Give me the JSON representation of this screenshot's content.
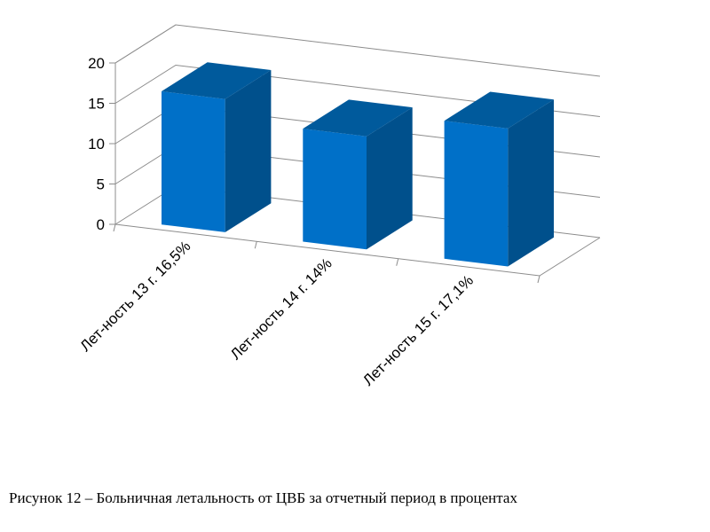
{
  "chart_data": {
    "type": "bar",
    "categories": [
      "Лет-ность 13 г. 16,5%",
      "Лет-ность 14 г. 14%",
      "Лет-ность 15 г. 17,1%"
    ],
    "values": [
      16.5,
      14,
      17.1
    ],
    "ylim": [
      0,
      20
    ],
    "yticks": [
      0,
      5,
      10,
      15,
      20
    ],
    "grid": true,
    "style": "3d-column",
    "colors": {
      "front": "#0070c8",
      "side": "#00508c",
      "top": "#005a9c",
      "grid": "#8c8c8c"
    }
  },
  "caption": "Рисунок 12 – Больничная летальность от ЦВБ за отчетный период в процентах"
}
